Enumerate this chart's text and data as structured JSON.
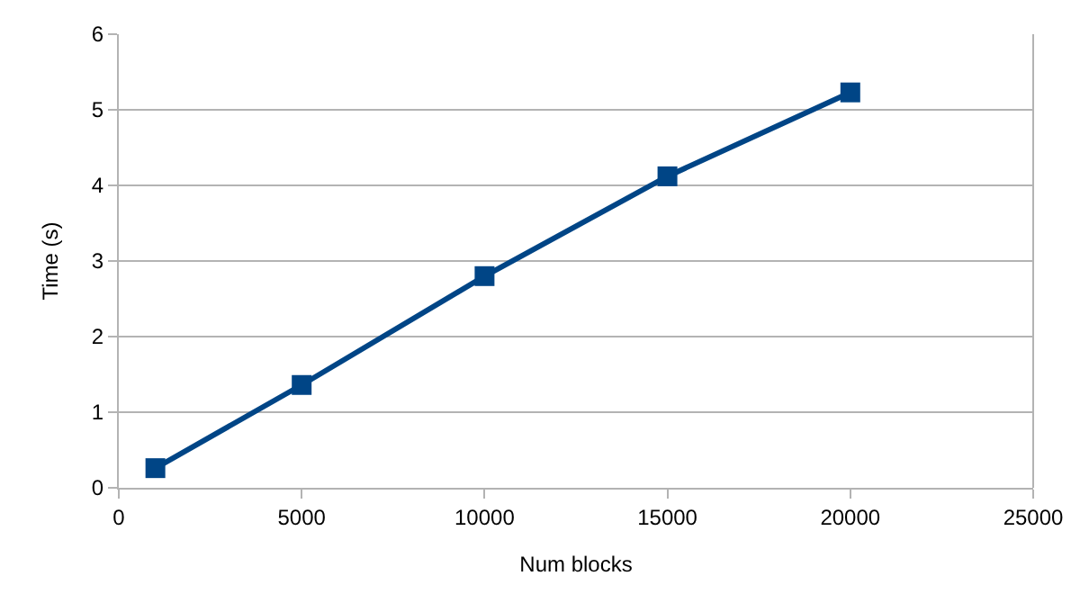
{
  "chart_data": {
    "type": "line",
    "xlabel": "Num blocks",
    "ylabel": "Time (s)",
    "x": [
      1000,
      5000,
      10000,
      15000,
      20000
    ],
    "series": [
      {
        "color": "#004586",
        "values": [
          0.26,
          1.36,
          2.8,
          4.12,
          5.23
        ]
      }
    ],
    "xlim": [
      0,
      25000
    ],
    "xticks": [
      0,
      5000,
      10000,
      15000,
      20000,
      25000
    ],
    "ylim": [
      0,
      6
    ],
    "yticks": [
      0,
      1,
      2,
      3,
      4,
      5,
      6
    ],
    "grid": "y",
    "marker": "square",
    "line_style": "solid"
  }
}
